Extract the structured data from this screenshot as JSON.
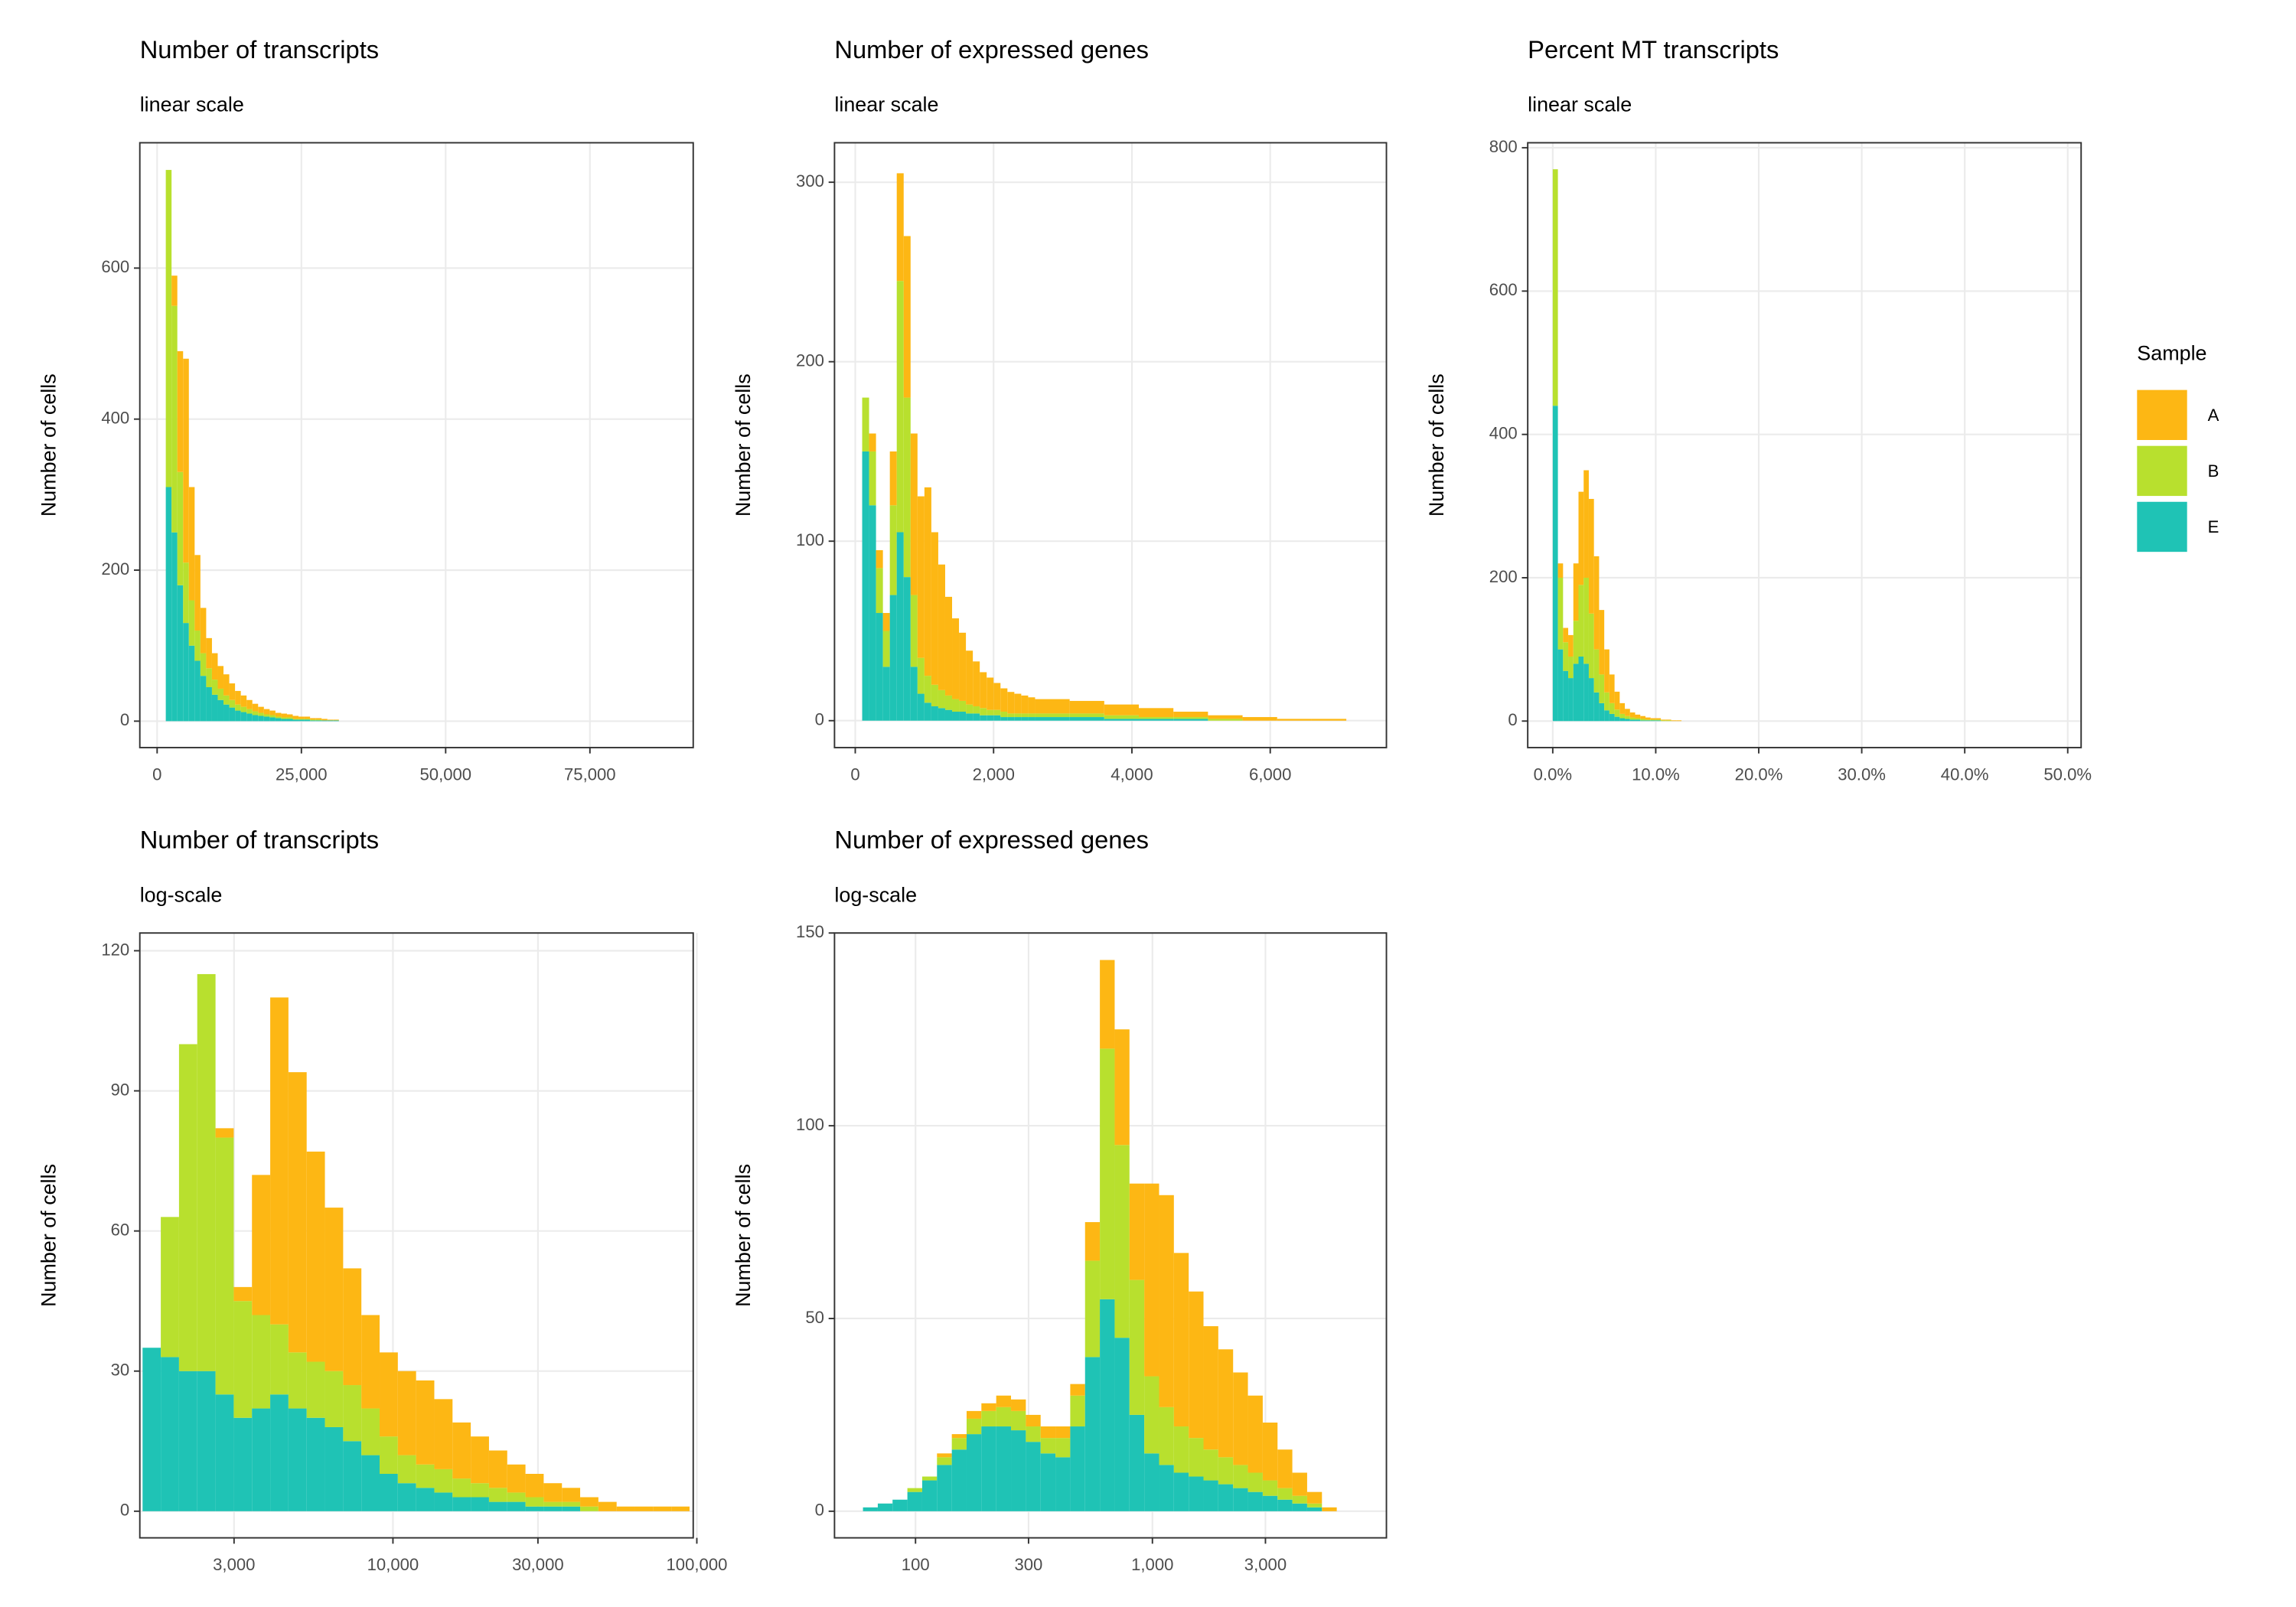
{
  "chart_data": [
    {
      "type": "histogram",
      "title": "Number of transcripts",
      "subtitle": "linear scale",
      "ylabel": "Number of cells",
      "log_x": false,
      "grid": true,
      "bins": [
        1500,
        2500,
        3500,
        4500,
        5500,
        6500,
        7500,
        8500,
        9500,
        10500,
        11500,
        12500,
        13500,
        14500,
        15500,
        16500,
        17500,
        18500,
        19500,
        20500,
        21500,
        22500,
        23500,
        24500,
        25500,
        26500,
        27500,
        28500,
        29500,
        30500,
        31500
      ],
      "series": [
        {
          "name": "A",
          "color": "#fdb714",
          "values": [
            0,
            40,
            160,
            270,
            150,
            100,
            60,
            40,
            35,
            30,
            28,
            22,
            18,
            15,
            12,
            10,
            8,
            7,
            6,
            5,
            5,
            4,
            4,
            3,
            3,
            2,
            2,
            2,
            1,
            1
          ]
        },
        {
          "name": "B",
          "color": "#b8e02e",
          "values": [
            420,
            300,
            150,
            80,
            60,
            40,
            30,
            25,
            20,
            15,
            12,
            10,
            8,
            7,
            6,
            5,
            4,
            3,
            3,
            2,
            2,
            2,
            1,
            1,
            1,
            1,
            1,
            0,
            0,
            0
          ]
        },
        {
          "name": "E",
          "color": "#1fc3b5",
          "values": [
            310,
            250,
            180,
            130,
            100,
            80,
            60,
            45,
            35,
            28,
            22,
            18,
            14,
            12,
            10,
            8,
            7,
            6,
            5,
            4,
            3,
            3,
            2,
            2,
            2,
            1,
            1,
            1,
            1,
            1
          ]
        }
      ],
      "xlim": [
        -3000,
        92900
      ],
      "xticks": [
        0,
        {
          "value": 25000,
          "label": "25,000"
        },
        {
          "value": 50000,
          "label": "50,000"
        },
        {
          "value": 75000,
          "label": "75,000"
        }
      ],
      "ylim": [
        -35,
        766
      ],
      "yticks": [
        0,
        200,
        400,
        600
      ]
    },
    {
      "type": "histogram",
      "title": "Number of expressed genes",
      "subtitle": "linear scale",
      "ylabel": "Number of cells",
      "log_x": false,
      "grid": true,
      "bins": [
        100,
        200,
        300,
        400,
        500,
        600,
        700,
        800,
        900,
        1000,
        1100,
        1200,
        1300,
        1400,
        1500,
        1600,
        1700,
        1800,
        1900,
        2000,
        2100,
        2200,
        2300,
        2400,
        2500,
        2600,
        3100,
        3600,
        4100,
        4600,
        5100,
        5600,
        6100,
        6600,
        7100
      ],
      "series": [
        {
          "name": "A",
          "color": "#fdb714",
          "values": [
            0,
            10,
            10,
            10,
            30,
            60,
            90,
            90,
            90,
            105,
            85,
            70,
            55,
            45,
            38,
            30,
            25,
            20,
            18,
            15,
            13,
            12,
            11,
            10,
            9,
            8,
            7,
            6,
            5,
            3,
            2,
            2,
            1,
            1
          ]
        },
        {
          "name": "B",
          "color": "#b8e02e",
          "values": [
            30,
            30,
            25,
            20,
            50,
            140,
            100,
            40,
            20,
            15,
            12,
            10,
            8,
            7,
            6,
            5,
            4,
            4,
            3,
            3,
            3,
            2,
            2,
            2,
            2,
            2,
            2,
            2,
            1,
            1,
            1,
            0,
            0,
            0
          ]
        },
        {
          "name": "E",
          "color": "#1fc3b5",
          "values": [
            150,
            120,
            60,
            30,
            70,
            105,
            80,
            30,
            15,
            10,
            8,
            7,
            6,
            5,
            5,
            4,
            4,
            3,
            3,
            3,
            2,
            2,
            2,
            2,
            2,
            2,
            2,
            1,
            1,
            1,
            0,
            0,
            0,
            0
          ]
        }
      ],
      "xlim": [
        -300,
        7680
      ],
      "xticks": [
        0,
        {
          "value": 2000,
          "label": "2,000"
        },
        {
          "value": 4000,
          "label": "4,000"
        },
        {
          "value": 6000,
          "label": "6,000"
        }
      ],
      "ylim": [
        -15,
        322
      ],
      "yticks": [
        0,
        100,
        200,
        300
      ]
    },
    {
      "type": "histogram",
      "title": "Percent MT transcripts",
      "subtitle": "linear scale",
      "ylabel": "Number of cells",
      "log_x": false,
      "grid": true,
      "legend_title": "Sample",
      "legend": "right",
      "bins": [
        0,
        0.5,
        1,
        1.5,
        2,
        2.5,
        3,
        3.5,
        4,
        4.5,
        5,
        5.5,
        6,
        6.5,
        7,
        7.5,
        8,
        8.5,
        9,
        9.5,
        10,
        10.5,
        11,
        11.5,
        12,
        12.5
      ],
      "series": [
        {
          "name": "A",
          "color": "#fdb714",
          "values": [
            0,
            20,
            20,
            30,
            80,
            130,
            150,
            160,
            130,
            90,
            60,
            40,
            25,
            15,
            10,
            7,
            5,
            4,
            3,
            2,
            2,
            1,
            1,
            1,
            1
          ]
        },
        {
          "name": "B",
          "color": "#b8e02e",
          "values": [
            330,
            100,
            40,
            30,
            60,
            100,
            120,
            90,
            60,
            40,
            25,
            15,
            10,
            6,
            4,
            3,
            2,
            2,
            1,
            1,
            1,
            1,
            1,
            0,
            0
          ]
        },
        {
          "name": "E",
          "color": "#1fc3b5",
          "values": [
            440,
            100,
            70,
            60,
            80,
            90,
            80,
            60,
            40,
            25,
            15,
            10,
            6,
            4,
            3,
            2,
            2,
            1,
            1,
            1,
            1,
            0,
            0,
            0,
            0
          ]
        }
      ],
      "xlim": [
        -2.43,
        51.3
      ],
      "xticks": [
        {
          "value": 0,
          "label": "0.0%"
        },
        {
          "value": 10,
          "label": "10.0%"
        },
        {
          "value": 20,
          "label": "20.0%"
        },
        {
          "value": 30,
          "label": "30.0%"
        },
        {
          "value": 40,
          "label": "40.0%"
        },
        {
          "value": 50,
          "label": "50.0%"
        }
      ],
      "ylim": [
        -37,
        807
      ],
      "yticks": [
        0,
        200,
        400,
        600,
        800
      ]
    },
    {
      "type": "histogram",
      "title": "Number of transcripts",
      "subtitle": "log-scale",
      "ylabel": "Number of cells",
      "log_x": true,
      "grid": true,
      "bins": [
        1500,
        1722,
        1977,
        2270,
        2607,
        2993,
        3436,
        3946,
        4530,
        5201,
        5972,
        6857,
        7872,
        9039,
        10378,
        11915,
        13680,
        15707,
        18034,
        20706,
        23773,
        27295,
        31339,
        35982,
        41312,
        47433,
        54459,
        62527,
        71790,
        82426,
        94637
      ],
      "series": [
        {
          "name": "A",
          "color": "#fdb714",
          "values": [
            0,
            0,
            0,
            0,
            2,
            3,
            30,
            70,
            60,
            45,
            35,
            25,
            20,
            18,
            18,
            18,
            15,
            12,
            10,
            8,
            6,
            5,
            4,
            3,
            2,
            2,
            1,
            1,
            1,
            1
          ]
        },
        {
          "name": "B",
          "color": "#b8e02e",
          "values": [
            0,
            30,
            70,
            85,
            55,
            25,
            20,
            15,
            12,
            12,
            12,
            12,
            10,
            8,
            6,
            5,
            5,
            4,
            3,
            3,
            2,
            2,
            1,
            1,
            1,
            0,
            0,
            0,
            0,
            0
          ]
        },
        {
          "name": "E",
          "color": "#1fc3b5",
          "values": [
            35,
            33,
            30,
            30,
            25,
            20,
            22,
            25,
            22,
            20,
            18,
            15,
            12,
            8,
            6,
            5,
            4,
            3,
            3,
            2,
            2,
            1,
            1,
            1,
            0,
            0,
            0,
            0,
            0,
            0
          ]
        }
      ],
      "xlim": [
        1469,
        97300
      ],
      "xticks": [
        {
          "value": 3000,
          "label": "3,000"
        },
        {
          "value": 10000,
          "label": "10,000"
        },
        {
          "value": 30000,
          "label": "30,000"
        },
        {
          "value": 100000,
          "label": "100,000"
        }
      ],
      "ylim": [
        -5.7,
        123.8
      ],
      "yticks": [
        0,
        30,
        60,
        90,
        120
      ]
    },
    {
      "type": "histogram",
      "title": "Number of expressed genes",
      "subtitle": "log-scale",
      "ylabel": "Number of cells",
      "log_x": true,
      "grid": true,
      "bins": [
        60,
        69.3,
        80,
        92.4,
        106.7,
        123.2,
        142.3,
        164.3,
        189.7,
        219.1,
        253,
        292.2,
        337.4,
        389.6,
        449.9,
        519.6,
        600,
        692.9,
        800.1,
        923.9,
        1067,
        1232,
        1423,
        1643,
        1897,
        2191,
        2530,
        2922,
        3374,
        3896,
        4499,
        5196,
        6000
      ],
      "series": [
        {
          "name": "A",
          "color": "#fdb714",
          "values": [
            0,
            0,
            0,
            0,
            0,
            1,
            1,
            2,
            2,
            3,
            3,
            3,
            3,
            3,
            3,
            10,
            23,
            30,
            25,
            50,
            55,
            45,
            38,
            32,
            28,
            24,
            20,
            15,
            10,
            6,
            3,
            1
          ]
        },
        {
          "name": "B",
          "color": "#b8e02e",
          "values": [
            0,
            0,
            0,
            1,
            1,
            2,
            3,
            4,
            4,
            5,
            5,
            4,
            4,
            5,
            8,
            25,
            65,
            50,
            35,
            20,
            15,
            12,
            10,
            8,
            7,
            6,
            5,
            4,
            3,
            2,
            1,
            0
          ]
        },
        {
          "name": "E",
          "color": "#1fc3b5",
          "values": [
            1,
            2,
            3,
            5,
            8,
            12,
            16,
            20,
            22,
            22,
            21,
            18,
            15,
            14,
            22,
            40,
            55,
            45,
            25,
            15,
            12,
            10,
            9,
            8,
            7,
            6,
            5,
            4,
            3,
            2,
            1,
            0
          ]
        }
      ],
      "xlim": [
        45.5,
        9724
      ],
      "xticks": [
        100,
        300,
        {
          "value": 1000,
          "label": "1,000"
        },
        {
          "value": 3000,
          "label": "3,000"
        }
      ],
      "ylim": [
        -6.9,
        150
      ],
      "yticks": [
        0,
        50,
        100,
        150
      ]
    }
  ]
}
